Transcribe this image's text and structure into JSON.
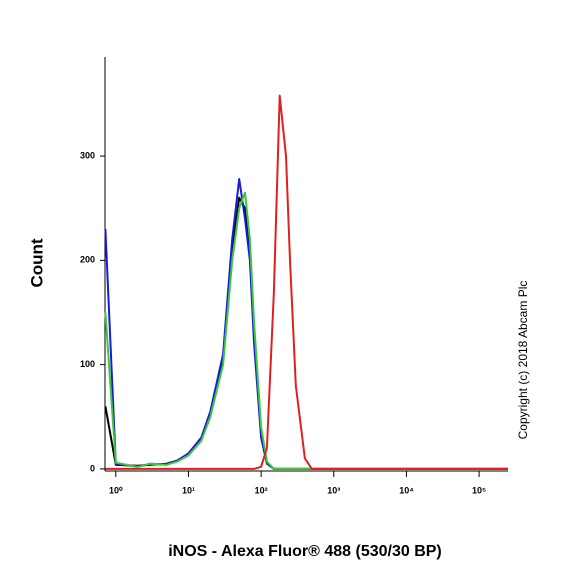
{
  "chart_data": {
    "type": "line",
    "xlabel": "iNOS - Alexa Fluor® 488 (530/30 BP)",
    "ylabel": "Count",
    "annotation": "Copyright (c) 2018 Abcam Plc",
    "xscale": "log",
    "xlim": [
      0.71,
      250000
    ],
    "ylim": [
      -2,
      395
    ],
    "xticks": [
      {
        "value": 1,
        "label": "10⁰"
      },
      {
        "value": 10,
        "label": "10¹"
      },
      {
        "value": 100,
        "label": "10²"
      },
      {
        "value": 1000,
        "label": "10³"
      },
      {
        "value": 10000,
        "label": "10⁴"
      },
      {
        "value": 100000,
        "label": "10⁵"
      }
    ],
    "yticks": [
      0,
      100,
      200,
      300
    ],
    "x": [
      0.72,
      1,
      2,
      3,
      5,
      7,
      10,
      15,
      20,
      30,
      40,
      50,
      60,
      70,
      80,
      100,
      120,
      150,
      180,
      220,
      250,
      300,
      400,
      500,
      1000,
      10000,
      250000
    ],
    "series": [
      {
        "color": "#000000",
        "values": [
          60,
          4,
          3,
          4,
          5,
          8,
          14,
          28,
          50,
          105,
          210,
          260,
          250,
          210,
          130,
          35,
          6,
          0,
          0,
          0,
          0,
          0,
          0,
          0,
          0,
          0,
          0
        ]
      },
      {
        "color": "#1a1adc",
        "values": [
          230,
          5,
          2,
          5,
          4,
          8,
          15,
          30,
          55,
          110,
          220,
          278,
          240,
          200,
          120,
          30,
          5,
          0,
          0,
          0,
          0,
          0,
          0,
          0,
          0,
          0,
          0
        ]
      },
      {
        "color": "#3cc83c",
        "values": [
          150,
          6,
          2,
          5,
          4,
          7,
          13,
          27,
          50,
          100,
          200,
          250,
          265,
          220,
          140,
          40,
          7,
          0,
          0,
          0,
          0,
          0,
          0,
          0,
          0,
          0,
          0
        ]
      },
      {
        "color": "#e02020",
        "values": [
          0,
          0,
          0,
          0,
          0,
          0,
          0,
          0,
          0,
          0,
          0,
          0,
          0,
          0,
          0,
          2,
          20,
          170,
          358,
          300,
          200,
          80,
          10,
          0,
          0,
          0,
          0
        ]
      }
    ]
  }
}
